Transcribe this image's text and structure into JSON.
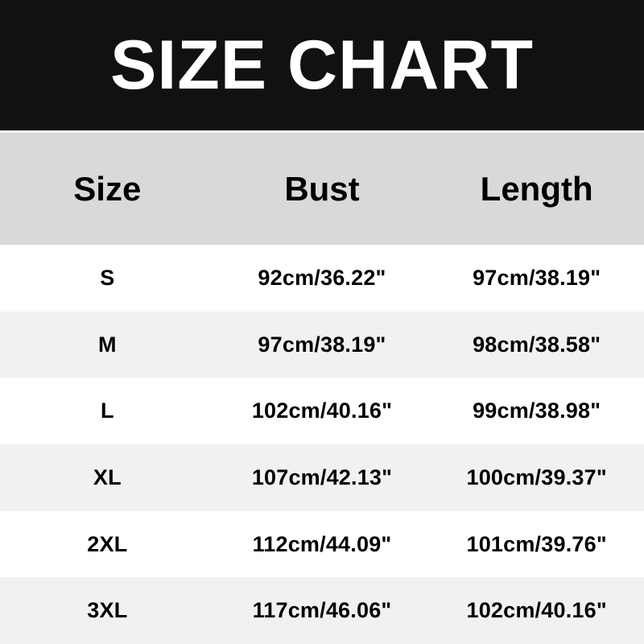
{
  "title": "SIZE CHART",
  "colors": {
    "banner_bg": "#111111",
    "banner_text": "#ffffff",
    "header_bg": "#d9d9d9",
    "row_bg": "#ffffff",
    "row_alt_bg": "#f1f1f1",
    "text": "#000000"
  },
  "chart_data": {
    "type": "table",
    "title": "SIZE CHART",
    "columns": [
      "Size",
      "Bust",
      "Length"
    ],
    "rows": [
      [
        "S",
        "92cm/36.22\"",
        "97cm/38.19\""
      ],
      [
        "M",
        "97cm/38.19\"",
        "98cm/38.58\""
      ],
      [
        "L",
        "102cm/40.16\"",
        "99cm/38.98\""
      ],
      [
        "XL",
        "107cm/42.13\"",
        "100cm/39.37\""
      ],
      [
        "2XL",
        "112cm/44.09\"",
        "101cm/39.76\""
      ],
      [
        "3XL",
        "117cm/46.06\"",
        "102cm/40.16\""
      ]
    ]
  }
}
